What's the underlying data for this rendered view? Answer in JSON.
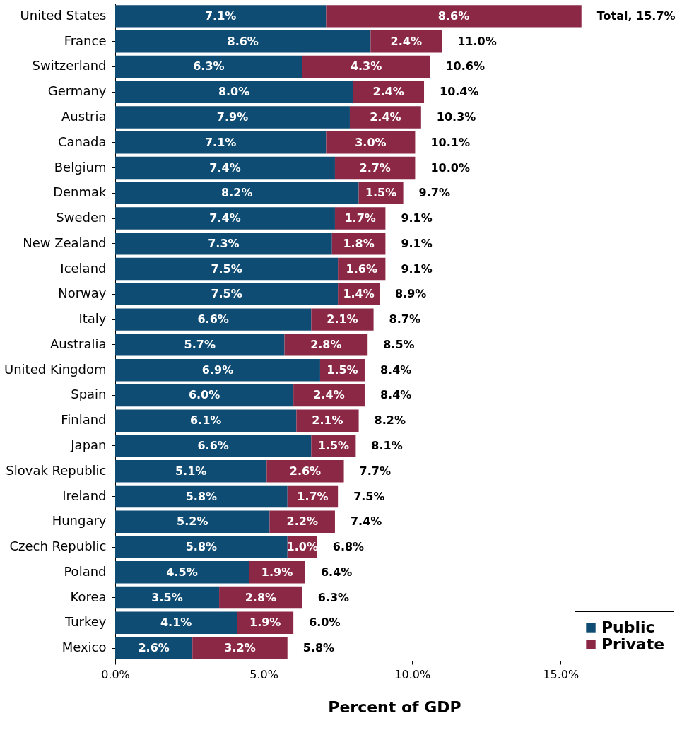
{
  "chart_data": {
    "type": "bar",
    "orientation": "horizontal",
    "stacked": true,
    "xlabel": "Percent of GDP",
    "categories": [
      "United States",
      "France",
      "Switzerland",
      "Germany",
      "Austria",
      "Canada",
      "Belgium",
      "Denmak",
      "Sweden",
      "New Zealand",
      "Iceland",
      "Norway",
      "Italy",
      "Australia",
      "United Kingdom",
      "Spain",
      "Finland",
      "Japan",
      "Slovak Republic",
      "Ireland",
      "Hungary",
      "Czech Republic",
      "Poland",
      "Korea",
      "Turkey",
      "Mexico"
    ],
    "series": [
      {
        "name": "Public",
        "color": "#0f4c73",
        "values": [
          7.1,
          8.6,
          6.3,
          8.0,
          7.9,
          7.1,
          7.4,
          8.2,
          7.4,
          7.3,
          7.5,
          7.5,
          6.6,
          5.7,
          6.9,
          6.0,
          6.1,
          6.6,
          5.1,
          5.8,
          5.2,
          5.8,
          4.5,
          3.5,
          4.1,
          2.6
        ],
        "value_labels": [
          "7.1%",
          "8.6%",
          "6.3%",
          "8.0%",
          "7.9%",
          "7.1%",
          "7.4%",
          "8.2%",
          "7.4%",
          "7.3%",
          "7.5%",
          "7.5%",
          "6.6%",
          "5.7%",
          "6.9%",
          "6.0%",
          "6.1%",
          "6.6%",
          "5.1%",
          "5.8%",
          "5.2%",
          "5.8%",
          "4.5%",
          "3.5%",
          "4.1%",
          "2.6%"
        ]
      },
      {
        "name": "Private",
        "color": "#8b2846",
        "values": [
          8.6,
          2.4,
          4.3,
          2.4,
          2.4,
          3.0,
          2.7,
          1.5,
          1.7,
          1.8,
          1.6,
          1.4,
          2.1,
          2.8,
          1.5,
          2.4,
          2.1,
          1.5,
          2.6,
          1.7,
          2.2,
          1.0,
          1.9,
          2.8,
          1.9,
          3.2
        ],
        "value_labels": [
          "8.6%",
          "2.4%",
          "4.3%",
          "2.4%",
          "2.4%",
          "3.0%",
          "2.7%",
          "1.5%",
          "1.7%",
          "1.8%",
          "1.6%",
          "1.4%",
          "2.1%",
          "2.8%",
          "1.5%",
          "2.4%",
          "2.1%",
          "1.5%",
          "2.6%",
          "1.7%",
          "2.2%",
          "1.0%",
          "1.9%",
          "2.8%",
          "1.9%",
          "3.2%"
        ]
      }
    ],
    "totals": [
      "Total, 15.7%",
      "11.0%",
      "10.6%",
      "10.4%",
      "10.3%",
      "10.1%",
      "10.0%",
      "9.7%",
      "9.1%",
      "9.1%",
      "9.1%",
      "8.9%",
      "8.7%",
      "8.5%",
      "8.4%",
      "8.4%",
      "8.2%",
      "8.1%",
      "7.7%",
      "7.5%",
      "7.4%",
      "6.8%",
      "6.4%",
      "6.3%",
      "6.0%",
      "5.8%"
    ],
    "xlim": [
      0,
      18.8
    ],
    "xticks": [
      {
        "value": 0,
        "label": "0.0%"
      },
      {
        "value": 5,
        "label": "5.0%"
      },
      {
        "value": 10,
        "label": "10.0%"
      },
      {
        "value": 15,
        "label": "15.0%"
      }
    ],
    "grid": false,
    "legend": "bottom right"
  }
}
